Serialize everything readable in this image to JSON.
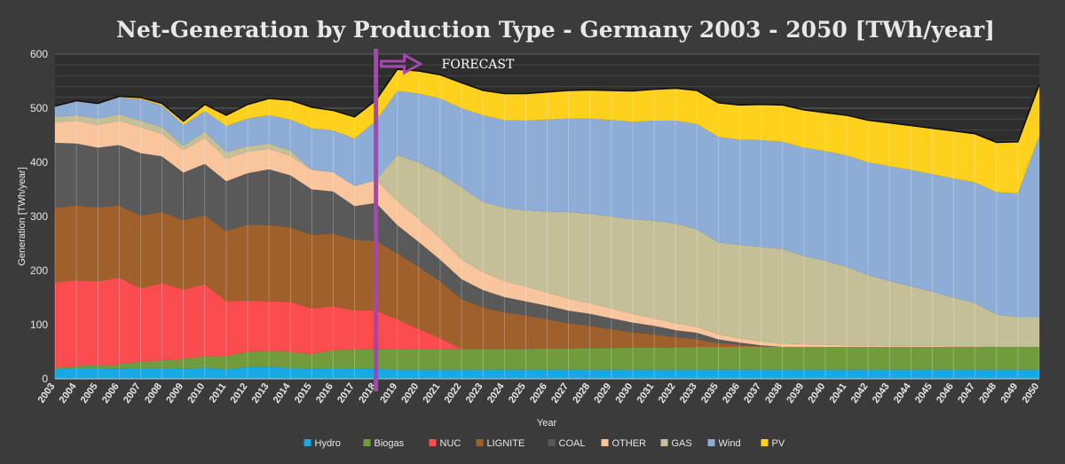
{
  "chart_data": {
    "type": "area",
    "stacked": true,
    "title": "Net-Generation by Production Type - Germany  2003 - 2050 [TWh/year]",
    "xlabel": "Year",
    "ylabel": "Generation [TWh/year]",
    "ylim": [
      0,
      600
    ],
    "yticks": [
      0,
      100,
      200,
      300,
      400,
      500,
      600
    ],
    "grid": true,
    "legend_position": "bottom",
    "annotation": {
      "text": "FORECAST",
      "at_category": "2018"
    },
    "categories": [
      "2003",
      "2004",
      "2005",
      "2006",
      "2007",
      "2008",
      "2009",
      "2010",
      "2011",
      "2012",
      "2013",
      "2014",
      "2015",
      "2016",
      "2017",
      "2018",
      "2019",
      "2020",
      "2021",
      "2022",
      "2023",
      "2024",
      "2025",
      "2026",
      "2027",
      "2028",
      "2029",
      "2030",
      "2031",
      "2032",
      "2033",
      "2035",
      "2036",
      "2037",
      "2038",
      "2039",
      "2040",
      "2041",
      "2042",
      "2043",
      "2044",
      "2045",
      "2046",
      "2047",
      "2048",
      "2049",
      "2050"
    ],
    "series": [
      {
        "name": "Hydro",
        "color": "#17a8e6",
        "values": [
          17,
          20,
          20,
          19,
          20,
          20,
          19,
          21,
          17,
          22,
          22,
          20,
          18,
          20,
          19,
          18,
          17,
          17,
          17,
          17,
          17,
          17,
          17,
          17,
          17,
          17,
          17,
          17,
          17,
          17,
          17,
          17,
          17,
          17,
          17,
          17,
          17,
          17,
          17,
          17,
          17,
          17,
          17,
          17,
          17,
          17,
          17
        ]
      },
      {
        "name": "Biogas",
        "color": "#709c3c",
        "values": [
          3,
          4,
          5,
          8,
          12,
          14,
          18,
          21,
          25,
          28,
          29,
          30,
          28,
          33,
          35,
          37,
          38,
          38,
          38,
          38,
          38,
          38,
          38,
          39,
          39,
          40,
          40,
          41,
          41,
          41,
          42,
          42,
          42,
          42,
          42,
          42,
          42,
          42,
          42,
          42,
          42,
          42,
          42,
          42,
          42,
          42,
          42
        ]
      },
      {
        "name": "NUC",
        "color": "#fb4d4f",
        "values": [
          158,
          158,
          155,
          160,
          135,
          143,
          128,
          133,
          101,
          95,
          92,
          92,
          84,
          81,
          72,
          72,
          55,
          37,
          20,
          0,
          0,
          0,
          0,
          0,
          0,
          0,
          0,
          0,
          0,
          0,
          0,
          0,
          0,
          0,
          0,
          0,
          0,
          0,
          0,
          0,
          0,
          0,
          0,
          0,
          0,
          0,
          0
        ]
      },
      {
        "name": "LIGNITE",
        "color": "#a0602b",
        "values": [
          138,
          138,
          137,
          133,
          135,
          131,
          128,
          127,
          130,
          140,
          141,
          138,
          136,
          134,
          131,
          128,
          122,
          115,
          105,
          92,
          77,
          68,
          62,
          54,
          47,
          41,
          35,
          28,
          24,
          19,
          14,
          7,
          4,
          1,
          0,
          0,
          0,
          0,
          0,
          0,
          0,
          0,
          0,
          0,
          0,
          0,
          0
        ]
      },
      {
        "name": "COAL",
        "color": "#595959",
        "values": [
          120,
          115,
          110,
          112,
          115,
          103,
          88,
          95,
          92,
          95,
          103,
          96,
          84,
          78,
          62,
          70,
          52,
          46,
          40,
          37,
          32,
          28,
          26,
          25,
          23,
          22,
          20,
          18,
          16,
          13,
          12,
          7,
          4,
          2,
          0,
          0,
          0,
          0,
          0,
          0,
          0,
          0,
          0,
          0,
          0,
          0,
          0
        ]
      },
      {
        "name": "OTHER",
        "color": "#f8c59c",
        "values": [
          38,
          42,
          42,
          45,
          48,
          42,
          42,
          48,
          42,
          40,
          38,
          36,
          36,
          36,
          37,
          42,
          45,
          42,
          40,
          37,
          33,
          30,
          28,
          24,
          22,
          20,
          18,
          16,
          14,
          13,
          11,
          9,
          8,
          7,
          6,
          5,
          4,
          3,
          3,
          2,
          2,
          2,
          1,
          1,
          0,
          0,
          0
        ]
      },
      {
        "name": "GAS",
        "color": "#c5bf98",
        "values": [
          10,
          10,
          12,
          12,
          12,
          12,
          8,
          12,
          12,
          10,
          10,
          10,
          0,
          0,
          0,
          0,
          85,
          105,
          120,
          133,
          130,
          135,
          140,
          150,
          160,
          165,
          170,
          175,
          180,
          184,
          180,
          170,
          172,
          175,
          175,
          163,
          155,
          145,
          130,
          120,
          110,
          100,
          90,
          80,
          60,
          55,
          55
        ]
      },
      {
        "name": "Wind",
        "color": "#8eadd6",
        "values": [
          19,
          26,
          27,
          31,
          40,
          40,
          38,
          38,
          48,
          51,
          52,
          57,
          77,
          77,
          88,
          110,
          118,
          127,
          138,
          146,
          160,
          162,
          166,
          170,
          173,
          176,
          178,
          180,
          185,
          190,
          195,
          195,
          195,
          197,
          198,
          200,
          203,
          206,
          208,
          212,
          215,
          217,
          220,
          223,
          226,
          229,
          335
        ]
      },
      {
        "name": "PV",
        "color": "#ffd11c",
        "values": [
          1,
          1,
          1,
          2,
          3,
          4,
          7,
          12,
          20,
          26,
          31,
          36,
          39,
          37,
          40,
          38,
          40,
          42,
          44,
          47,
          46,
          49,
          50,
          51,
          52,
          53,
          55,
          57,
          58,
          60,
          62,
          63,
          64,
          66,
          68,
          70,
          71,
          74,
          78,
          80,
          82,
          85,
          88,
          90,
          92,
          95,
          95
        ]
      }
    ]
  }
}
